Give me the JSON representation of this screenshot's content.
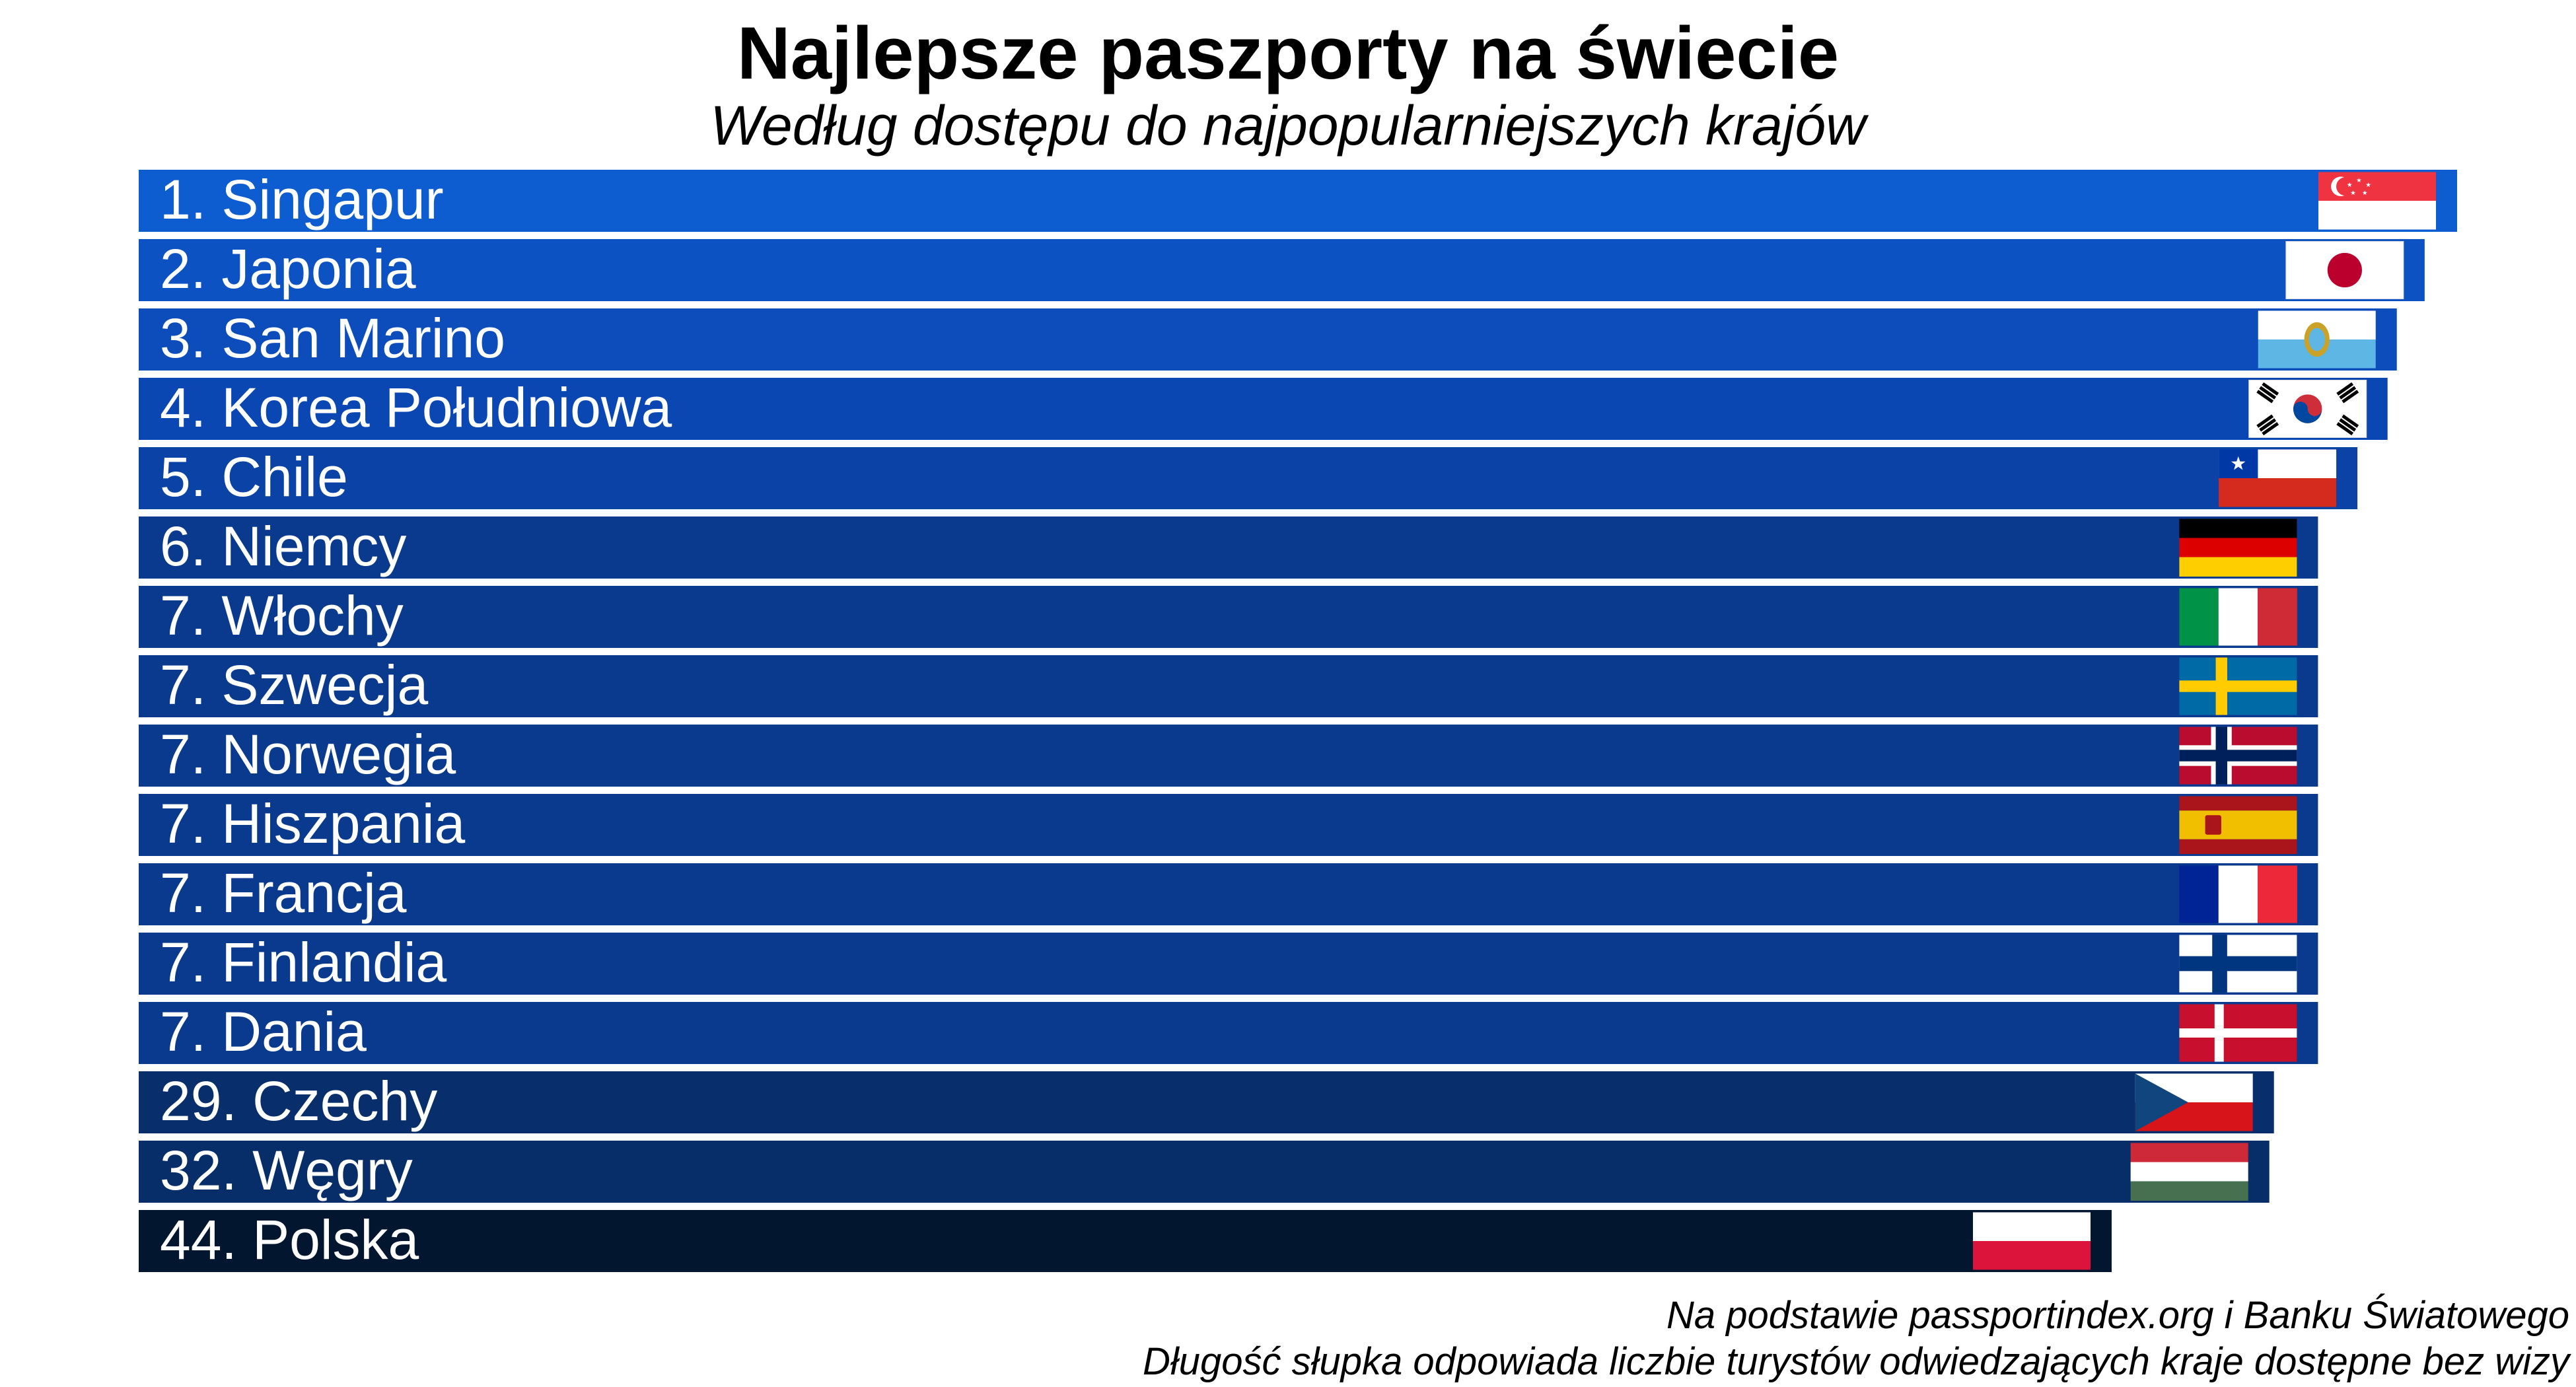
{
  "chart_data": {
    "type": "bar",
    "orientation": "horizontal",
    "title": "Najlepsze paszporty na świecie",
    "subtitle": "Według dostępu do najpopularniejszych krajów",
    "categories": [
      "1. Singapur",
      "2. Japonia",
      "3. San Marino",
      "4. Korea Południowa",
      "5. Chile",
      "6. Niemcy",
      "7. Włochy",
      "7. Szwecja",
      "7. Norwegia",
      "7. Hiszpania",
      "7. Francja",
      "7. Finlandia",
      "7. Dania",
      "29. Czechy",
      "32. Węgry",
      "44. Polska"
    ],
    "values": [
      1.0,
      0.986,
      0.974,
      0.97,
      0.957,
      0.94,
      0.94,
      0.94,
      0.94,
      0.94,
      0.94,
      0.94,
      0.94,
      0.921,
      0.919,
      0.851
    ],
    "value_note": "relative bar length (longest bar = 1)",
    "bar_colors": [
      "#0d5dd1",
      "#0c52c2",
      "#0c4dbb",
      "#0b47b2",
      "#0a42a6",
      "#0a3a8e",
      "#0a3a8e",
      "#0a3a8e",
      "#0a3a8e",
      "#0a3a8e",
      "#0a3a8e",
      "#0a3a8e",
      "#0a3a8e",
      "#082e6c",
      "#082e6a",
      "#021630"
    ],
    "flags": [
      "singapore-flag",
      "japan-flag",
      "san-marino-flag",
      "south-korea-flag",
      "chile-flag",
      "germany-flag",
      "italy-flag",
      "sweden-flag",
      "norway-flag",
      "spain-flag",
      "france-flag",
      "finland-flag",
      "denmark-flag",
      "czechia-flag",
      "hungary-flag",
      "poland-flag"
    ],
    "xlabel": "",
    "ylabel": "",
    "grid": false,
    "legend": "none"
  },
  "footnotes": [
    "Na podstawie passportindex.org i Banku Światowego",
    "Długość słupka odpowiada liczbie turystów odwiedzających kraje dostępne bez wizy"
  ]
}
